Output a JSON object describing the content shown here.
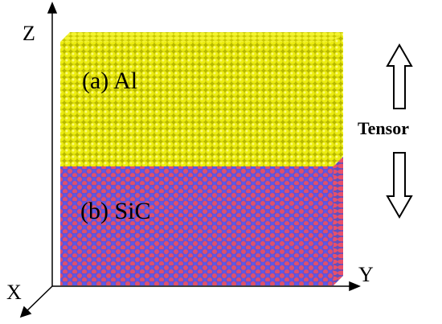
{
  "axes": {
    "z": "Z",
    "x": "X",
    "y": "Y"
  },
  "layers": [
    {
      "label": "(a) Al"
    },
    {
      "label": "(b) SiC"
    }
  ],
  "arrow_label": "Tensor"
}
